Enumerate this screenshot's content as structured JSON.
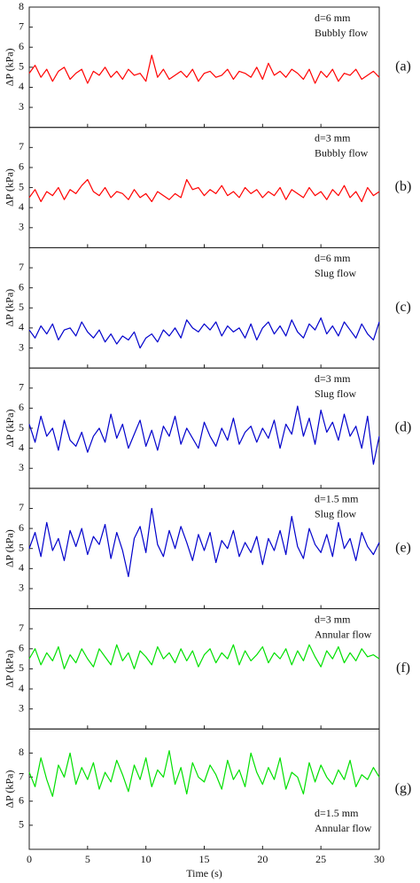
{
  "chart_data": [
    {
      "type": "line",
      "panel_label": "(a)",
      "annotation": [
        "d=6 mm",
        "Bubbly flow"
      ],
      "ylabel": "ΔP (kPa)",
      "ylim": [
        2,
        8
      ],
      "yticks": [
        3,
        4,
        5,
        6,
        7,
        8
      ],
      "series": [
        {
          "color": "#ff0000",
          "x": [
            0,
            0.5,
            1,
            1.5,
            2,
            2.5,
            3,
            3.5,
            4,
            4.5,
            5,
            5.5,
            6,
            6.5,
            7,
            7.5,
            8,
            8.5,
            9,
            9.5,
            10,
            10.5,
            11,
            11.5,
            12,
            12.5,
            13,
            13.5,
            14,
            14.5,
            15,
            15.5,
            16,
            16.5,
            17,
            17.5,
            18,
            18.5,
            19,
            19.5,
            20,
            20.5,
            21,
            21.5,
            22,
            22.5,
            23,
            23.5,
            24,
            24.5,
            25,
            25.5,
            26,
            26.5,
            27,
            27.5,
            28,
            28.5,
            29,
            29.5,
            30
          ],
          "values": [
            4.7,
            5.1,
            4.5,
            4.9,
            4.3,
            4.8,
            5.0,
            4.4,
            4.7,
            4.9,
            4.2,
            4.8,
            4.6,
            5.0,
            4.5,
            4.8,
            4.4,
            4.9,
            4.6,
            4.7,
            4.3,
            5.6,
            4.5,
            4.9,
            4.4,
            4.6,
            4.8,
            4.5,
            4.9,
            4.3,
            4.7,
            4.8,
            4.5,
            4.6,
            4.9,
            4.4,
            4.8,
            4.7,
            4.5,
            5.0,
            4.4,
            5.2,
            4.6,
            4.8,
            4.5,
            4.9,
            4.7,
            4.4,
            4.9,
            4.2,
            4.8,
            4.5,
            4.9,
            4.3,
            4.7,
            4.6,
            4.9,
            4.4,
            4.6,
            4.8,
            4.5
          ]
        }
      ]
    },
    {
      "type": "line",
      "panel_label": "(b)",
      "annotation": [
        "d=3 mm",
        "Bubbly flow"
      ],
      "ylabel": "ΔP (kPa)",
      "ylim": [
        2,
        8
      ],
      "yticks": [
        3,
        4,
        5,
        6,
        7
      ],
      "series": [
        {
          "color": "#ff0000",
          "x": [
            0,
            0.5,
            1,
            1.5,
            2,
            2.5,
            3,
            3.5,
            4,
            4.5,
            5,
            5.5,
            6,
            6.5,
            7,
            7.5,
            8,
            8.5,
            9,
            9.5,
            10,
            10.5,
            11,
            11.5,
            12,
            12.5,
            13,
            13.5,
            14,
            14.5,
            15,
            15.5,
            16,
            16.5,
            17,
            17.5,
            18,
            18.5,
            19,
            19.5,
            20,
            20.5,
            21,
            21.5,
            22,
            22.5,
            23,
            23.5,
            24,
            24.5,
            25,
            25.5,
            26,
            26.5,
            27,
            27.5,
            28,
            28.5,
            29,
            29.5,
            30
          ],
          "values": [
            4.5,
            4.9,
            4.3,
            4.8,
            4.6,
            5.0,
            4.4,
            4.9,
            4.7,
            5.1,
            5.4,
            4.8,
            4.6,
            5.0,
            4.5,
            4.8,
            4.7,
            4.4,
            4.9,
            4.5,
            4.7,
            4.3,
            4.8,
            4.6,
            4.4,
            4.7,
            4.5,
            5.4,
            4.9,
            5.0,
            4.6,
            4.9,
            4.7,
            5.1,
            4.6,
            4.8,
            4.5,
            5.0,
            4.7,
            4.9,
            4.5,
            4.8,
            4.6,
            5.0,
            4.4,
            4.9,
            4.7,
            4.5,
            5.0,
            4.6,
            4.8,
            4.4,
            4.9,
            4.6,
            5.1,
            4.5,
            4.8,
            4.3,
            5.0,
            4.6,
            4.8
          ]
        }
      ]
    },
    {
      "type": "line",
      "panel_label": "(c)",
      "annotation": [
        "d=6 mm",
        "Slug flow"
      ],
      "ylabel": "ΔP (kPa)",
      "ylim": [
        2,
        8
      ],
      "yticks": [
        3,
        4,
        5,
        6,
        7
      ],
      "series": [
        {
          "color": "#0000cc",
          "x": [
            0,
            0.5,
            1,
            1.5,
            2,
            2.5,
            3,
            3.5,
            4,
            4.5,
            5,
            5.5,
            6,
            6.5,
            7,
            7.5,
            8,
            8.5,
            9,
            9.5,
            10,
            10.5,
            11,
            11.5,
            12,
            12.5,
            13,
            13.5,
            14,
            14.5,
            15,
            15.5,
            16,
            16.5,
            17,
            17.5,
            18,
            18.5,
            19,
            19.5,
            20,
            20.5,
            21,
            21.5,
            22,
            22.5,
            23,
            23.5,
            24,
            24.5,
            25,
            25.5,
            26,
            26.5,
            27,
            27.5,
            28,
            28.5,
            29,
            29.5,
            30
          ],
          "values": [
            3.9,
            3.5,
            4.1,
            3.7,
            4.2,
            3.4,
            3.9,
            4.0,
            3.6,
            4.3,
            3.8,
            3.5,
            3.9,
            3.3,
            3.7,
            3.2,
            3.6,
            3.4,
            3.8,
            3.0,
            3.5,
            3.7,
            3.3,
            3.9,
            3.6,
            4.0,
            3.5,
            4.4,
            4.0,
            3.8,
            4.2,
            3.9,
            4.3,
            3.6,
            4.1,
            3.8,
            4.0,
            3.5,
            4.2,
            3.4,
            4.0,
            4.3,
            3.7,
            4.1,
            3.6,
            4.4,
            3.8,
            3.5,
            4.2,
            3.9,
            4.5,
            3.7,
            4.1,
            3.6,
            4.3,
            3.9,
            3.5,
            4.2,
            3.7,
            3.4,
            4.3
          ]
        }
      ]
    },
    {
      "type": "line",
      "panel_label": "(d)",
      "annotation": [
        "d=3 mm",
        "Slug flow"
      ],
      "ylabel": "ΔP (kPa)",
      "ylim": [
        2,
        8
      ],
      "yticks": [
        3,
        4,
        5,
        6,
        7
      ],
      "series": [
        {
          "color": "#0000cc",
          "x": [
            0,
            0.5,
            1,
            1.5,
            2,
            2.5,
            3,
            3.5,
            4,
            4.5,
            5,
            5.5,
            6,
            6.5,
            7,
            7.5,
            8,
            8.5,
            9,
            9.5,
            10,
            10.5,
            11,
            11.5,
            12,
            12.5,
            13,
            13.5,
            14,
            14.5,
            15,
            15.5,
            16,
            16.5,
            17,
            17.5,
            18,
            18.5,
            19,
            19.5,
            20,
            20.5,
            21,
            21.5,
            22,
            22.5,
            23,
            23.5,
            24,
            24.5,
            25,
            25.5,
            26,
            26.5,
            27,
            27.5,
            28,
            28.5,
            29,
            29.5,
            30
          ],
          "values": [
            5.2,
            4.3,
            5.6,
            4.6,
            5.0,
            3.9,
            5.4,
            4.4,
            4.1,
            4.8,
            3.8,
            4.6,
            5.0,
            4.3,
            5.7,
            4.5,
            5.2,
            4.0,
            4.7,
            5.4,
            4.1,
            4.9,
            3.9,
            5.1,
            4.6,
            5.6,
            4.2,
            5.0,
            4.5,
            4.0,
            5.3,
            4.6,
            4.1,
            5.0,
            4.4,
            5.5,
            4.2,
            4.8,
            5.1,
            4.3,
            5.0,
            4.5,
            5.4,
            4.0,
            5.2,
            4.7,
            6.1,
            4.6,
            5.5,
            4.2,
            5.9,
            4.8,
            5.3,
            4.4,
            5.7,
            4.6,
            5.1,
            4.0,
            5.6,
            3.2,
            4.6
          ]
        }
      ]
    },
    {
      "type": "line",
      "panel_label": "(e)",
      "annotation": [
        "d=1.5 mm",
        "Slug flow"
      ],
      "ylabel": "ΔP (kPa)",
      "ylim": [
        2,
        8
      ],
      "yticks": [
        3,
        4,
        5,
        6,
        7
      ],
      "series": [
        {
          "color": "#0000cc",
          "x": [
            0,
            0.5,
            1,
            1.5,
            2,
            2.5,
            3,
            3.5,
            4,
            4.5,
            5,
            5.5,
            6,
            6.5,
            7,
            7.5,
            8,
            8.5,
            9,
            9.5,
            10,
            10.5,
            11,
            11.5,
            12,
            12.5,
            13,
            13.5,
            14,
            14.5,
            15,
            15.5,
            16,
            16.5,
            17,
            17.5,
            18,
            18.5,
            19,
            19.5,
            20,
            20.5,
            21,
            21.5,
            22,
            22.5,
            23,
            23.5,
            24,
            24.5,
            25,
            25.5,
            26,
            26.5,
            27,
            27.5,
            28,
            28.5,
            29,
            29.5,
            30
          ],
          "values": [
            5.0,
            5.8,
            4.6,
            6.3,
            4.9,
            5.5,
            4.4,
            5.9,
            5.1,
            6.0,
            4.7,
            5.6,
            5.2,
            6.2,
            4.5,
            5.8,
            4.9,
            3.6,
            5.5,
            6.1,
            4.8,
            7.0,
            5.2,
            4.6,
            5.9,
            5.0,
            6.1,
            5.3,
            4.4,
            5.7,
            4.9,
            5.8,
            4.3,
            5.4,
            5.0,
            5.9,
            4.6,
            5.3,
            4.8,
            5.6,
            4.2,
            5.5,
            4.9,
            5.9,
            4.7,
            6.6,
            5.1,
            4.5,
            6.0,
            5.2,
            4.8,
            5.7,
            4.6,
            6.3,
            5.0,
            5.5,
            4.4,
            5.8,
            5.1,
            4.7,
            5.3
          ]
        }
      ]
    },
    {
      "type": "line",
      "panel_label": "(f)",
      "annotation": [
        "d=3 mm",
        "Annular flow"
      ],
      "ylabel": "ΔP (kPa)",
      "ylim": [
        2,
        8
      ],
      "yticks": [
        3,
        4,
        5,
        6,
        7
      ],
      "series": [
        {
          "color": "#00e000",
          "x": [
            0,
            0.5,
            1,
            1.5,
            2,
            2.5,
            3,
            3.5,
            4,
            4.5,
            5,
            5.5,
            6,
            6.5,
            7,
            7.5,
            8,
            8.5,
            9,
            9.5,
            10,
            10.5,
            11,
            11.5,
            12,
            12.5,
            13,
            13.5,
            14,
            14.5,
            15,
            15.5,
            16,
            16.5,
            17,
            17.5,
            18,
            18.5,
            19,
            19.5,
            20,
            20.5,
            21,
            21.5,
            22,
            22.5,
            23,
            23.5,
            24,
            24.5,
            25,
            25.5,
            26,
            26.5,
            27,
            27.5,
            28,
            28.5,
            29,
            29.5,
            30
          ],
          "values": [
            5.5,
            6.0,
            5.2,
            5.8,
            5.4,
            6.1,
            5.0,
            5.7,
            5.3,
            6.0,
            5.5,
            5.1,
            6.0,
            5.6,
            5.2,
            6.2,
            5.4,
            5.8,
            5.0,
            5.9,
            5.6,
            5.2,
            6.1,
            5.5,
            5.8,
            5.3,
            6.0,
            5.4,
            5.9,
            5.1,
            5.7,
            6.0,
            5.3,
            5.8,
            5.5,
            6.2,
            5.2,
            5.9,
            5.4,
            5.7,
            6.1,
            5.3,
            5.8,
            5.5,
            6.0,
            5.2,
            5.9,
            5.4,
            6.2,
            5.6,
            5.1,
            5.9,
            5.5,
            6.1,
            5.3,
            5.8,
            5.4,
            6.0,
            5.6,
            5.7,
            5.5
          ]
        }
      ]
    },
    {
      "type": "line",
      "panel_label": "(g)",
      "annotation": [
        "d=1.5 mm",
        "Annular flow"
      ],
      "annotation_corner": "bottom-right",
      "ylabel": "ΔP (kPa)",
      "ylim": [
        4,
        9
      ],
      "yticks": [
        5,
        6,
        7,
        8
      ],
      "xlabel": "Time (s)",
      "xlim": [
        0,
        30
      ],
      "xticks": [
        0,
        5,
        10,
        15,
        20,
        25,
        30
      ],
      "series": [
        {
          "color": "#00e000",
          "x": [
            0,
            0.5,
            1,
            1.5,
            2,
            2.5,
            3,
            3.5,
            4,
            4.5,
            5,
            5.5,
            6,
            6.5,
            7,
            7.5,
            8,
            8.5,
            9,
            9.5,
            10,
            10.5,
            11,
            11.5,
            12,
            12.5,
            13,
            13.5,
            14,
            14.5,
            15,
            15.5,
            16,
            16.5,
            17,
            17.5,
            18,
            18.5,
            19,
            19.5,
            20,
            20.5,
            21,
            21.5,
            22,
            22.5,
            23,
            23.5,
            24,
            24.5,
            25,
            25.5,
            26,
            26.5,
            27,
            27.5,
            28,
            28.5,
            29,
            29.5,
            30
          ],
          "values": [
            7.2,
            6.6,
            7.8,
            6.9,
            6.2,
            7.5,
            7.0,
            8.0,
            6.7,
            7.4,
            6.9,
            7.6,
            6.5,
            7.2,
            6.8,
            7.7,
            7.1,
            6.4,
            7.5,
            6.9,
            7.8,
            6.6,
            7.3,
            7.0,
            8.1,
            6.7,
            7.4,
            6.3,
            7.6,
            7.0,
            6.8,
            7.5,
            7.1,
            6.5,
            7.7,
            6.9,
            7.3,
            6.6,
            8.0,
            7.2,
            6.7,
            7.4,
            6.9,
            7.8,
            6.5,
            7.2,
            7.0,
            6.3,
            7.6,
            6.8,
            7.5,
            7.0,
            6.7,
            7.3,
            6.9,
            7.7,
            6.6,
            7.1,
            6.9,
            7.4,
            7.0
          ]
        }
      ]
    }
  ]
}
